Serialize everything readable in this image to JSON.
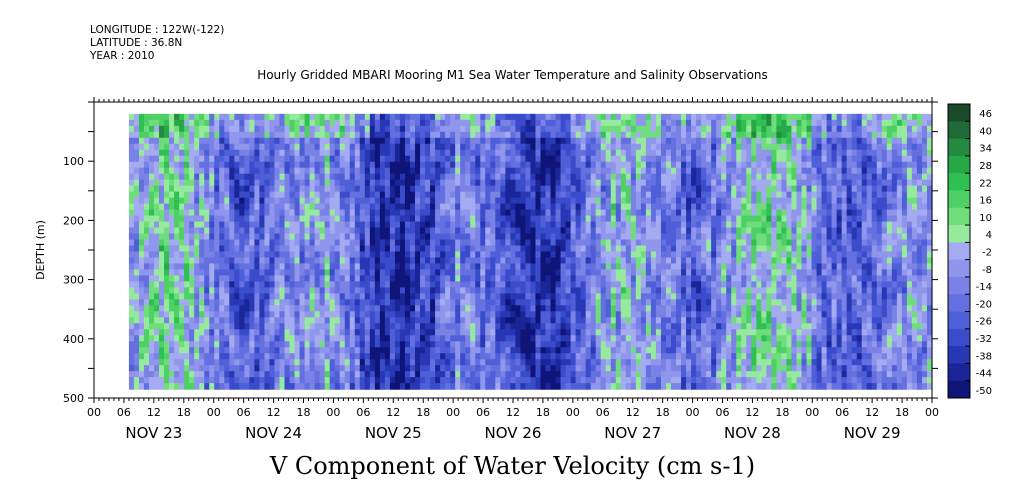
{
  "header": {
    "longitude": "LONGITUDE : 122W(-122)",
    "latitude": "LATITUDE : 36.8N",
    "year": "YEAR : 2010"
  },
  "title": "Hourly Gridded MBARI Mooring M1 Sea Water Temperature and Salinity Observations",
  "bottom_title": "V Component of Water Velocity (cm s-1)",
  "chart_data": {
    "type": "heatmap",
    "ylabel": "DEPTH (m)",
    "ylim": [
      500,
      0
    ],
    "yticks": [
      100,
      200,
      300,
      400,
      500
    ],
    "xhour_labels": [
      "00",
      "06",
      "12",
      "18",
      "00",
      "06",
      "12",
      "18",
      "00",
      "06",
      "12",
      "18",
      "00",
      "06",
      "12",
      "18",
      "00",
      "06",
      "12",
      "18",
      "00",
      "06",
      "12",
      "18",
      "00",
      "06",
      "12",
      "18",
      "00"
    ],
    "xday_labels": [
      "NOV 23",
      "NOV 24",
      "NOV 25",
      "NOV 26",
      "NOV 27",
      "NOV 28",
      "NOV 29"
    ],
    "colorbar_labels": [
      "46",
      "40",
      "34",
      "28",
      "22",
      "16",
      "10",
      "4",
      "-2",
      "-8",
      "-14",
      "-20",
      "-26",
      "-32",
      "-38",
      "-44",
      "-50"
    ],
    "colorbar_colors": [
      "#1b4a2a",
      "#1f6a36",
      "#238a3f",
      "#27a847",
      "#2fc052",
      "#4ed066",
      "#6fdd7c",
      "#96ea9e",
      "#a5abf0",
      "#8f96ec",
      "#7a82e6",
      "#6470e0",
      "#4f5fd8",
      "#3a4ccb",
      "#2838b4",
      "#1a2698",
      "#0f1578"
    ],
    "data_extent_hours": [
      7,
      168
    ],
    "data_depth_range_m": [
      20,
      485
    ]
  }
}
